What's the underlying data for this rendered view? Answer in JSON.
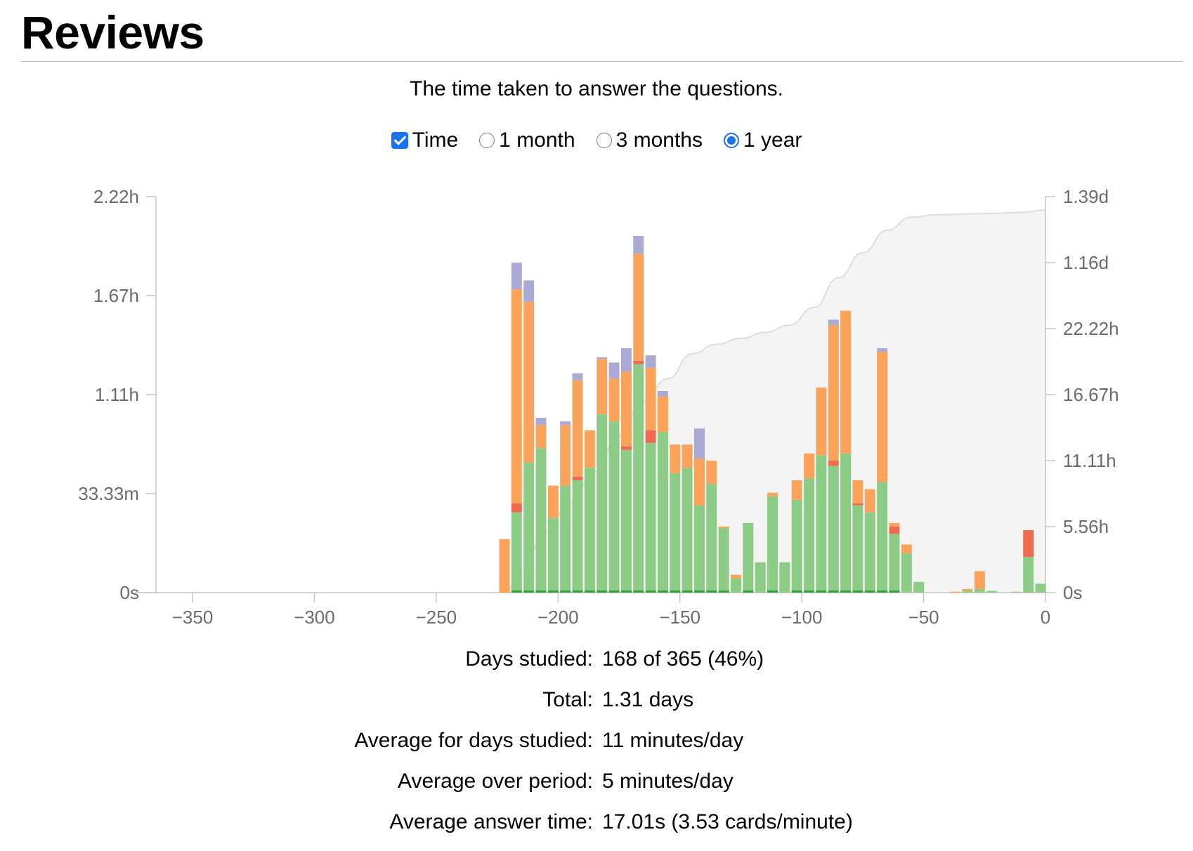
{
  "page": {
    "title": "Reviews",
    "subtitle": "The time taken to answer the questions."
  },
  "controls": {
    "time": {
      "label": "Time",
      "checked": true
    },
    "ranges": [
      {
        "label": "1 month",
        "selected": false
      },
      {
        "label": "3 months",
        "selected": false
      },
      {
        "label": "1 year",
        "selected": true
      }
    ]
  },
  "stats": [
    {
      "label": "Days studied:",
      "value": "168 of 365 (46%)"
    },
    {
      "label": "Total:",
      "value": "1.31 days"
    },
    {
      "label": "Average for days studied:",
      "value": "11 minutes/day"
    },
    {
      "label": "Average over period:",
      "value": "5 minutes/day"
    },
    {
      "label": "Average answer time:",
      "value": "17.01s (3.53 cards/minute)"
    }
  ],
  "colors": {
    "learn": "#fca35b",
    "young": "#8ccc86",
    "mature": "#35a03b",
    "relearn": "#ef6a4f",
    "filtered": "#aaaad4",
    "cumulative_fill": "#f4f4f4",
    "cumulative_line": "#dddddd",
    "axis": "#c6c6c6"
  },
  "chart_data": {
    "type": "bar",
    "stacked": true,
    "xlim": [
      -365,
      0
    ],
    "x_ticks": [
      "−350",
      "−300",
      "−250",
      "−200",
      "−150",
      "−100",
      "−50",
      "0"
    ],
    "x_tick_values": [
      -350,
      -300,
      -250,
      -200,
      -150,
      -100,
      -50,
      0
    ],
    "y_left_ticks": [
      "0s",
      "33.33m",
      "1.11h",
      "1.67h",
      "2.22h"
    ],
    "y_left_max_hours": 2.22,
    "y_right_ticks": [
      "0s",
      "5.56h",
      "11.11h",
      "16.67h",
      "22.22h",
      "1.16d",
      "1.39d"
    ],
    "y_right_max_hours": 33.33,
    "series_order": [
      "mature",
      "young",
      "relearn",
      "learn",
      "filtered"
    ],
    "bars": [
      {
        "x": -222,
        "young": 0,
        "relearn": 0,
        "learn": 0.3,
        "filtered": 0
      },
      {
        "x": -217,
        "young": 0.45,
        "relearn": 0.05,
        "learn": 1.2,
        "filtered": 0.15
      },
      {
        "x": -212,
        "young": 0.73,
        "relearn": 0,
        "learn": 0.9,
        "filtered": 0.12
      },
      {
        "x": -207,
        "young": 0.81,
        "relearn": 0,
        "learn": 0.13,
        "filtered": 0.04
      },
      {
        "x": -202,
        "young": 0.42,
        "relearn": 0,
        "learn": 0.18,
        "filtered": 0
      },
      {
        "x": -197,
        "young": 0.6,
        "relearn": 0,
        "learn": 0.34,
        "filtered": 0.02
      },
      {
        "x": -192,
        "young": 0.63,
        "relearn": 0.02,
        "learn": 0.54,
        "filtered": 0.04
      },
      {
        "x": -187,
        "young": 0.7,
        "relearn": 0,
        "learn": 0.21,
        "filtered": 0
      },
      {
        "x": -182,
        "young": 1.0,
        "relearn": 0,
        "learn": 0.31,
        "filtered": 0.01
      },
      {
        "x": -177,
        "young": 0.96,
        "relearn": 0,
        "learn": 0.24,
        "filtered": 0.09
      },
      {
        "x": -172,
        "young": 0.8,
        "relearn": 0.02,
        "learn": 0.42,
        "filtered": 0.13
      },
      {
        "x": -167,
        "young": 1.28,
        "relearn": 0.02,
        "learn": 0.6,
        "filtered": 0.1
      },
      {
        "x": -162,
        "young": 0.84,
        "relearn": 0.07,
        "learn": 0.35,
        "filtered": 0.07
      },
      {
        "x": -157,
        "young": 0.9,
        "relearn": 0,
        "learn": 0.2,
        "filtered": 0.03
      },
      {
        "x": -152,
        "young": 0.67,
        "relearn": 0,
        "learn": 0.16,
        "filtered": 0
      },
      {
        "x": -147,
        "young": 0.7,
        "relearn": 0,
        "learn": 0.13,
        "filtered": 0
      },
      {
        "x": -142,
        "young": 0.49,
        "relearn": 0,
        "learn": 0.26,
        "filtered": 0.17
      },
      {
        "x": -137,
        "young": 0.61,
        "relearn": 0,
        "learn": 0.13,
        "filtered": 0
      },
      {
        "x": -132,
        "young": 0.36,
        "relearn": 0,
        "learn": 0.01,
        "filtered": 0
      },
      {
        "x": -127,
        "young": 0.08,
        "relearn": 0,
        "learn": 0.02,
        "filtered": 0
      },
      {
        "x": -122,
        "young": 0.39,
        "relearn": 0,
        "learn": 0,
        "filtered": 0
      },
      {
        "x": -117,
        "young": 0.17,
        "relearn": 0,
        "learn": 0,
        "filtered": 0
      },
      {
        "x": -112,
        "young": 0.54,
        "relearn": 0,
        "learn": 0.02,
        "filtered": 0
      },
      {
        "x": -107,
        "young": 0.17,
        "relearn": 0,
        "learn": 0,
        "filtered": 0
      },
      {
        "x": -102,
        "young": 0.52,
        "relearn": 0,
        "learn": 0.11,
        "filtered": 0
      },
      {
        "x": -97,
        "young": 0.64,
        "relearn": 0,
        "learn": 0.14,
        "filtered": 0
      },
      {
        "x": -92,
        "young": 0.77,
        "relearn": 0,
        "learn": 0.38,
        "filtered": 0
      },
      {
        "x": -87,
        "young": 0.71,
        "relearn": 0.03,
        "learn": 0.76,
        "filtered": 0.03
      },
      {
        "x": -82,
        "young": 0.78,
        "relearn": 0,
        "learn": 0.8,
        "filtered": 0
      },
      {
        "x": -77,
        "young": 0.49,
        "relearn": 0.01,
        "learn": 0.13,
        "filtered": 0
      },
      {
        "x": -72,
        "young": 0.45,
        "relearn": 0,
        "learn": 0.13,
        "filtered": 0
      },
      {
        "x": -67,
        "young": 0.62,
        "relearn": 0,
        "learn": 0.73,
        "filtered": 0.02
      },
      {
        "x": -62,
        "young": 0.33,
        "relearn": 0.04,
        "learn": 0.02,
        "filtered": 0
      },
      {
        "x": -57,
        "young": 0.22,
        "relearn": 0,
        "learn": 0.05,
        "filtered": 0
      },
      {
        "x": -52,
        "young": 0.06,
        "relearn": 0,
        "learn": 0,
        "filtered": 0
      },
      {
        "x": -37,
        "young": 0,
        "relearn": 0,
        "learn": 0.005,
        "filtered": 0
      },
      {
        "x": -32,
        "young": 0.01,
        "relearn": 0,
        "learn": 0.01,
        "filtered": 0
      },
      {
        "x": -27,
        "young": 0.02,
        "relearn": 0,
        "learn": 0.1,
        "filtered": 0
      },
      {
        "x": -22,
        "young": 0.01,
        "relearn": 0,
        "learn": 0,
        "filtered": 0
      },
      {
        "x": -12,
        "young": 0.005,
        "relearn": 0,
        "learn": 0,
        "filtered": 0
      },
      {
        "x": -7,
        "young": 0.2,
        "relearn": 0.15,
        "learn": 0,
        "filtered": 0
      },
      {
        "x": -2,
        "young": 0.05,
        "relearn": 0,
        "learn": 0,
        "filtered": 0
      }
    ],
    "cumulative": [
      {
        "x": -222,
        "y": 0
      },
      {
        "x": -215,
        "y": 1.8
      },
      {
        "x": -205,
        "y": 5.2
      },
      {
        "x": -195,
        "y": 7.6
      },
      {
        "x": -185,
        "y": 10.2
      },
      {
        "x": -175,
        "y": 13.3
      },
      {
        "x": -165,
        "y": 16.2
      },
      {
        "x": -155,
        "y": 18.0
      },
      {
        "x": -145,
        "y": 20.1
      },
      {
        "x": -135,
        "y": 20.9
      },
      {
        "x": -125,
        "y": 21.4
      },
      {
        "x": -115,
        "y": 21.9
      },
      {
        "x": -105,
        "y": 22.5
      },
      {
        "x": -95,
        "y": 24.0
      },
      {
        "x": -85,
        "y": 26.5
      },
      {
        "x": -75,
        "y": 28.6
      },
      {
        "x": -65,
        "y": 30.5
      },
      {
        "x": -55,
        "y": 31.6
      },
      {
        "x": -45,
        "y": 31.8
      },
      {
        "x": -25,
        "y": 31.9
      },
      {
        "x": -10,
        "y": 32.0
      },
      {
        "x": 0,
        "y": 32.2
      }
    ]
  }
}
